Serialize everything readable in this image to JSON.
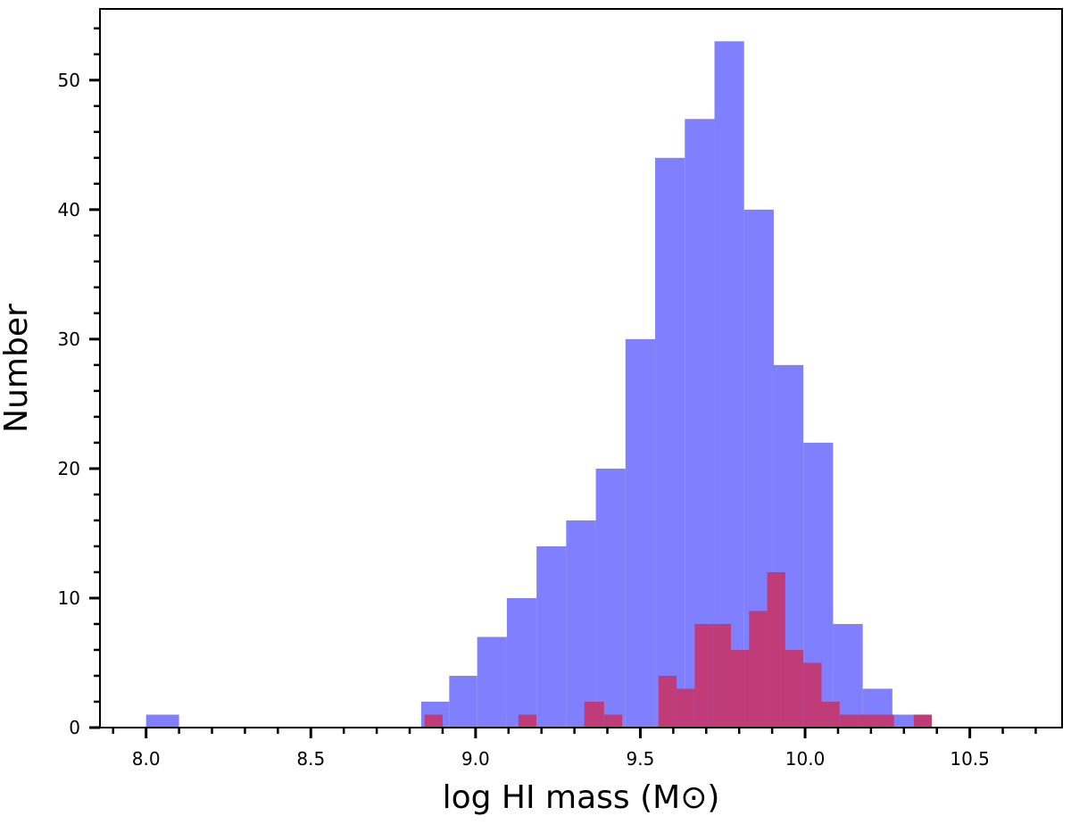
{
  "chart_data": {
    "type": "bar",
    "title": "",
    "xlabel": "log HI mass (M⊙)",
    "ylabel": "Number",
    "xlim": [
      7.86,
      10.78
    ],
    "ylim": [
      0,
      55.5
    ],
    "x_ticks": [
      "8.0",
      "8.5",
      "9.0",
      "9.5",
      "10.0",
      "10.5"
    ],
    "y_ticks": [
      "0",
      "10",
      "20",
      "30",
      "40",
      "50"
    ],
    "grid": false,
    "legend": "none",
    "series": [
      {
        "color": "#8080ff",
        "bins": [
          {
            "x0": 8.0,
            "x1": 8.1,
            "value": 1
          },
          {
            "x0": 8.835,
            "x1": 8.92,
            "value": 2
          },
          {
            "x0": 8.92,
            "x1": 9.005,
            "value": 4
          },
          {
            "x0": 9.005,
            "x1": 9.095,
            "value": 7
          },
          {
            "x0": 9.095,
            "x1": 9.185,
            "value": 10
          },
          {
            "x0": 9.185,
            "x1": 9.275,
            "value": 14
          },
          {
            "x0": 9.275,
            "x1": 9.365,
            "value": 16
          },
          {
            "x0": 9.365,
            "x1": 9.455,
            "value": 20
          },
          {
            "x0": 9.455,
            "x1": 9.545,
            "value": 30
          },
          {
            "x0": 9.545,
            "x1": 9.635,
            "value": 44
          },
          {
            "x0": 9.635,
            "x1": 9.725,
            "value": 47
          },
          {
            "x0": 9.725,
            "x1": 9.815,
            "value": 53
          },
          {
            "x0": 9.815,
            "x1": 9.905,
            "value": 40
          },
          {
            "x0": 9.905,
            "x1": 9.995,
            "value": 28
          },
          {
            "x0": 9.995,
            "x1": 10.085,
            "value": 22
          },
          {
            "x0": 10.085,
            "x1": 10.175,
            "value": 8
          },
          {
            "x0": 10.175,
            "x1": 10.265,
            "value": 3
          },
          {
            "x0": 10.265,
            "x1": 10.355,
            "value": 1
          }
        ]
      },
      {
        "color": "#c03c78",
        "bins": [
          {
            "x0": 8.845,
            "x1": 8.9,
            "value": 1
          },
          {
            "x0": 9.13,
            "x1": 9.185,
            "value": 1
          },
          {
            "x0": 9.33,
            "x1": 9.39,
            "value": 2
          },
          {
            "x0": 9.39,
            "x1": 9.445,
            "value": 1
          },
          {
            "x0": 9.555,
            "x1": 9.61,
            "value": 4
          },
          {
            "x0": 9.61,
            "x1": 9.665,
            "value": 3
          },
          {
            "x0": 9.665,
            "x1": 9.72,
            "value": 8
          },
          {
            "x0": 9.72,
            "x1": 9.775,
            "value": 8
          },
          {
            "x0": 9.775,
            "x1": 9.83,
            "value": 6
          },
          {
            "x0": 9.83,
            "x1": 9.885,
            "value": 9
          },
          {
            "x0": 9.885,
            "x1": 9.94,
            "value": 12
          },
          {
            "x0": 9.94,
            "x1": 9.995,
            "value": 6
          },
          {
            "x0": 9.995,
            "x1": 10.05,
            "value": 5
          },
          {
            "x0": 10.05,
            "x1": 10.105,
            "value": 2
          },
          {
            "x0": 10.105,
            "x1": 10.16,
            "value": 1
          },
          {
            "x0": 10.16,
            "x1": 10.215,
            "value": 1
          },
          {
            "x0": 10.215,
            "x1": 10.27,
            "value": 1
          },
          {
            "x0": 10.33,
            "x1": 10.385,
            "value": 1
          }
        ]
      }
    ]
  }
}
